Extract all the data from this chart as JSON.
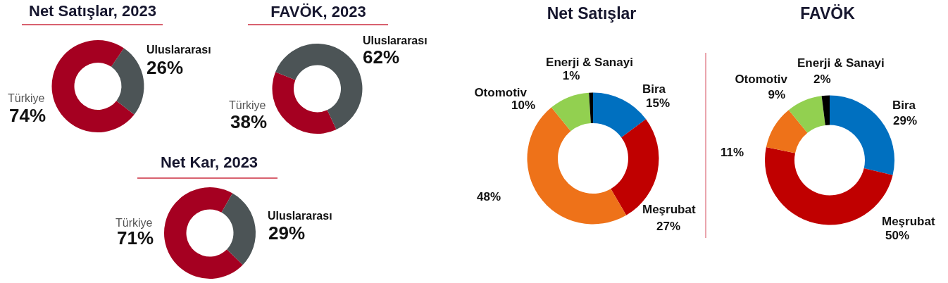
{
  "chart_data": [
    {
      "type": "donut",
      "title": "Net Satışlar, 2023",
      "categories": [
        "Türkiye",
        "Uluslararası"
      ],
      "values": [
        74,
        26
      ],
      "colors": [
        "#a50021",
        "#4c5456"
      ],
      "value_labels": [
        "74%",
        "26%"
      ]
    },
    {
      "type": "donut",
      "title": "FAVÖK, 2023",
      "categories": [
        "Türkiye",
        "Uluslararası"
      ],
      "values": [
        38,
        62
      ],
      "colors": [
        "#a50021",
        "#4c5456"
      ],
      "value_labels": [
        "38%",
        "62%"
      ]
    },
    {
      "type": "donut",
      "title": "Net Kar, 2023",
      "categories": [
        "Türkiye",
        "Uluslararası"
      ],
      "values": [
        71,
        29
      ],
      "colors": [
        "#a50021",
        "#4c5456"
      ],
      "value_labels": [
        "71%",
        "29%"
      ]
    },
    {
      "type": "donut",
      "title": "Net Satışlar",
      "categories": [
        "Bira",
        "Meşrubat",
        null,
        "Otomotiv",
        "Enerji & Sanayi"
      ],
      "values": [
        15,
        27,
        48,
        10,
        1
      ],
      "colors": [
        "#0070c0",
        "#c00000",
        "#ee7219",
        "#92d050",
        "#000000"
      ],
      "value_labels": [
        "15%",
        "27%",
        "48%",
        "10%",
        "1%"
      ]
    },
    {
      "type": "donut",
      "title": "FAVÖK",
      "categories": [
        "Bira",
        "Meşrubat",
        null,
        "Otomotiv",
        "Enerji & Sanayi"
      ],
      "values": [
        29,
        50,
        11,
        9,
        2
      ],
      "colors": [
        "#0070c0",
        "#c00000",
        "#ee7219",
        "#92d050",
        "#000000"
      ],
      "value_labels": [
        "29%",
        "50%",
        "11%",
        "9%",
        "2%"
      ]
    }
  ]
}
